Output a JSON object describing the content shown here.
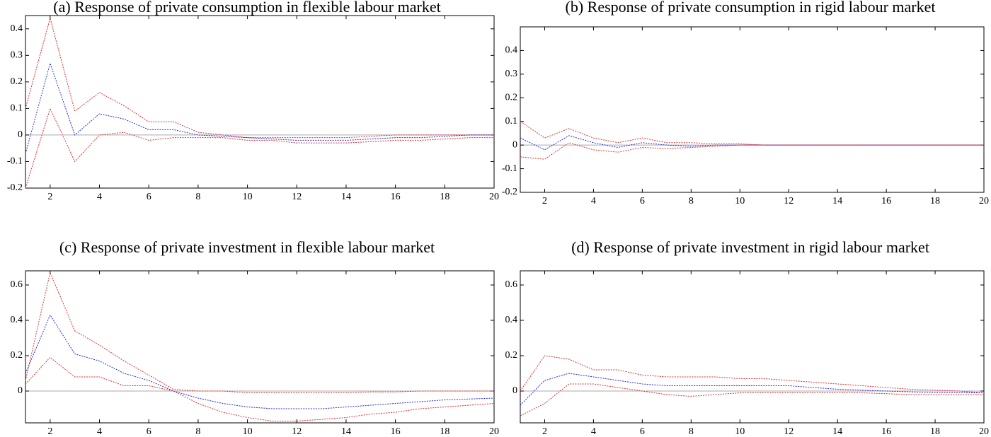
{
  "chart_data": [
    {
      "type": "line",
      "title": "(a) Response of private consumption in flexible labour market",
      "x": [
        1,
        2,
        3,
        4,
        5,
        6,
        7,
        8,
        9,
        10,
        11,
        12,
        13,
        14,
        15,
        16,
        17,
        18,
        19,
        20
      ],
      "xlim": [
        1,
        20
      ],
      "xticks": [
        2,
        4,
        6,
        8,
        10,
        12,
        14,
        16,
        18,
        20
      ],
      "ylim": [
        -0.2,
        0.45
      ],
      "yticks": [
        -0.2,
        -0.1,
        0,
        0.1,
        0.2,
        0.3,
        0.4
      ],
      "series": [
        {
          "color": "#e03030",
          "values": [
            0.1,
            0.44,
            0.09,
            0.16,
            0.11,
            0.05,
            0.05,
            0.01,
            0.0,
            -0.01,
            -0.01,
            -0.01,
            -0.01,
            -0.01,
            -0.005,
            0,
            0,
            0,
            0,
            0
          ]
        },
        {
          "color": "#2a2ae0",
          "values": [
            -0.07,
            0.27,
            0.0,
            0.08,
            0.06,
            0.02,
            0.02,
            0.0,
            -0.005,
            -0.01,
            -0.015,
            -0.02,
            -0.02,
            -0.02,
            -0.015,
            -0.01,
            -0.01,
            -0.005,
            0,
            0
          ]
        },
        {
          "color": "#e03030",
          "values": [
            -0.2,
            0.1,
            -0.1,
            0.0,
            0.01,
            -0.02,
            -0.01,
            -0.01,
            -0.01,
            -0.02,
            -0.02,
            -0.03,
            -0.03,
            -0.03,
            -0.025,
            -0.02,
            -0.02,
            -0.015,
            -0.01,
            -0.01
          ]
        }
      ]
    },
    {
      "type": "line",
      "title": "(b) Response of private consumption in rigid labour market",
      "x": [
        1,
        2,
        3,
        4,
        5,
        6,
        7,
        8,
        9,
        10,
        11,
        12,
        13,
        14,
        15,
        16,
        17,
        18,
        19,
        20
      ],
      "xlim": [
        1,
        20
      ],
      "xticks": [
        2,
        4,
        6,
        8,
        10,
        12,
        14,
        16,
        18,
        20
      ],
      "ylim": [
        -0.2,
        0.5
      ],
      "yticks": [
        -0.2,
        -0.1,
        0,
        0.1,
        0.2,
        0.3,
        0.4
      ],
      "series": [
        {
          "color": "#e03030",
          "values": [
            0.1,
            0.03,
            0.07,
            0.03,
            0.01,
            0.03,
            0.01,
            0.01,
            0.005,
            0.005,
            0,
            0,
            0,
            0,
            0,
            0,
            0,
            0,
            0,
            0
          ]
        },
        {
          "color": "#2a2ae0",
          "values": [
            0.03,
            -0.02,
            0.04,
            0.01,
            -0.01,
            0.01,
            0.0,
            -0.005,
            0,
            0,
            0,
            0,
            0,
            0,
            0,
            0,
            0,
            0,
            0,
            0
          ]
        },
        {
          "color": "#e03030",
          "values": [
            -0.05,
            -0.06,
            0.01,
            -0.02,
            -0.03,
            -0.01,
            -0.015,
            -0.01,
            -0.005,
            0,
            0,
            0,
            0,
            0,
            0,
            0,
            0,
            0,
            0,
            0
          ]
        }
      ]
    },
    {
      "type": "line",
      "title": "(c) Response of private investment in flexible labour market",
      "x": [
        1,
        2,
        3,
        4,
        5,
        6,
        7,
        8,
        9,
        10,
        11,
        12,
        13,
        14,
        15,
        16,
        17,
        18,
        19,
        20
      ],
      "xlim": [
        1,
        20
      ],
      "xticks": [
        2,
        4,
        6,
        8,
        10,
        12,
        14,
        16,
        18,
        20
      ],
      "ylim": [
        -0.18,
        0.68
      ],
      "yticks": [
        0,
        0.2,
        0.4,
        0.6
      ],
      "series": [
        {
          "color": "#e03030",
          "values": [
            0.06,
            0.67,
            0.34,
            0.26,
            0.17,
            0.09,
            0.01,
            0.0,
            0.0,
            -0.01,
            -0.01,
            -0.01,
            -0.01,
            -0.01,
            -0.005,
            -0.005,
            0,
            0,
            0,
            0
          ]
        },
        {
          "color": "#2a2ae0",
          "values": [
            0.1,
            0.43,
            0.21,
            0.17,
            0.1,
            0.06,
            0.0,
            -0.04,
            -0.07,
            -0.09,
            -0.1,
            -0.1,
            -0.1,
            -0.09,
            -0.08,
            -0.07,
            -0.06,
            -0.05,
            -0.045,
            -0.04
          ]
        },
        {
          "color": "#e03030",
          "values": [
            0.04,
            0.19,
            0.08,
            0.08,
            0.03,
            0.03,
            0.0,
            -0.07,
            -0.12,
            -0.15,
            -0.17,
            -0.17,
            -0.16,
            -0.15,
            -0.13,
            -0.12,
            -0.1,
            -0.09,
            -0.08,
            -0.07
          ]
        }
      ]
    },
    {
      "type": "line",
      "title": "(d) Response of private investment in rigid labour market",
      "x": [
        1,
        2,
        3,
        4,
        5,
        6,
        7,
        8,
        9,
        10,
        11,
        12,
        13,
        14,
        15,
        16,
        17,
        18,
        19,
        20
      ],
      "xlim": [
        1,
        20
      ],
      "xticks": [
        2,
        4,
        6,
        8,
        10,
        12,
        14,
        16,
        18,
        20
      ],
      "ylim": [
        -0.18,
        0.68
      ],
      "yticks": [
        0,
        0.2,
        0.4,
        0.6
      ],
      "series": [
        {
          "color": "#e03030",
          "values": [
            0.0,
            0.2,
            0.18,
            0.12,
            0.12,
            0.09,
            0.08,
            0.08,
            0.08,
            0.07,
            0.07,
            0.06,
            0.05,
            0.04,
            0.03,
            0.02,
            0.01,
            0.005,
            0,
            -0.01
          ]
        },
        {
          "color": "#2a2ae0",
          "values": [
            -0.08,
            0.06,
            0.1,
            0.08,
            0.06,
            0.04,
            0.03,
            0.03,
            0.03,
            0.03,
            0.03,
            0.03,
            0.02,
            0.01,
            0.005,
            0,
            -0.005,
            -0.01,
            -0.01,
            -0.01
          ]
        },
        {
          "color": "#e03030",
          "values": [
            -0.14,
            -0.07,
            0.04,
            0.04,
            0.02,
            0.0,
            -0.02,
            -0.03,
            -0.02,
            -0.01,
            -0.01,
            -0.01,
            -0.01,
            -0.01,
            -0.01,
            -0.015,
            -0.02,
            -0.02,
            -0.02,
            -0.02
          ]
        }
      ]
    }
  ]
}
